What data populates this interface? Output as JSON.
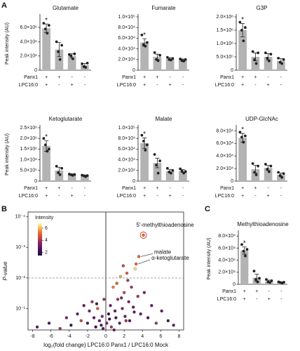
{
  "chart_data": [
    {
      "type": "bar",
      "panel": "A",
      "title": "Glutamate",
      "ylabel": "Peak intensity (AU)",
      "color": "#b3b3b3",
      "annotation": "*",
      "values": [
        5900000,
        2900000,
        2000000,
        700000
      ],
      "errors": [
        600000,
        1000000,
        300000,
        250000
      ],
      "points": [
        [
          6600000,
          5800000,
          5200000,
          6300000
        ],
        [
          4000000,
          2600000,
          1500000,
          3500000
        ],
        [
          2200000,
          2000000,
          1600000,
          2300000
        ],
        [
          900000,
          500000,
          400000,
          1000000
        ]
      ],
      "ylim": [
        0,
        7500000
      ],
      "yticks": [
        {
          "value": 0,
          "label": "0"
        },
        {
          "value": 2000000,
          "label": "2.0×10⁶"
        },
        {
          "value": 4000000,
          "label": "4.0×10⁶"
        },
        {
          "value": 6000000,
          "label": "6.0×10⁶"
        }
      ],
      "condition_labels": [
        "Panx1",
        "LPC16:0"
      ],
      "conditions": [
        [
          "+",
          "+",
          "-",
          "-"
        ],
        [
          "+",
          "-",
          "+",
          "-"
        ]
      ]
    },
    {
      "type": "bar",
      "title": "Fumarate",
      "color": "#b3b3b3",
      "annotation": "*",
      "values": [
        52000,
        25000,
        21000,
        19000
      ],
      "errors": [
        7000,
        5000,
        2500,
        2000
      ],
      "points": [
        [
          66000,
          48000,
          45000,
          52000
        ],
        [
          33000,
          20000,
          18000,
          28000
        ],
        [
          24000,
          20000,
          19000,
          22000
        ],
        [
          21000,
          18000,
          17000,
          20000
        ]
      ],
      "ylim": [
        0,
        100000
      ],
      "yticks": [
        {
          "value": 0,
          "label": "0"
        },
        {
          "value": 20000,
          "label": "2.0×10⁴"
        },
        {
          "value": 40000,
          "label": "4.0×10⁴"
        },
        {
          "value": 60000,
          "label": "6.0×10⁴"
        },
        {
          "value": 80000,
          "label": "8.0×10⁴"
        },
        {
          "value": 100000,
          "label": "1.0×10⁵"
        }
      ],
      "condition_labels": [
        "Panx1",
        "LPC16:0"
      ],
      "conditions": [
        [
          "+",
          "+",
          "-",
          "-"
        ],
        [
          "+",
          "-",
          "+",
          "-"
        ]
      ]
    },
    {
      "type": "bar",
      "title": "G3P",
      "color": "#b3b3b3",
      "annotation": "*",
      "values": [
        1500000,
        500000,
        500000,
        350000
      ],
      "errors": [
        250000,
        150000,
        120000,
        80000
      ],
      "points": [
        [
          1800000,
          1500000,
          1100000,
          1600000
        ],
        [
          700000,
          400000,
          250000,
          650000
        ],
        [
          650000,
          450000,
          350000,
          600000
        ],
        [
          450000,
          300000,
          250000,
          400000
        ]
      ],
      "ylim": [
        0,
        2000000
      ],
      "yticks": [
        {
          "value": 0,
          "label": "0"
        },
        {
          "value": 500000,
          "label": "5.0×10⁵"
        },
        {
          "value": 1000000,
          "label": "1.0×10⁶"
        },
        {
          "value": 1500000,
          "label": "1.5×10⁶"
        },
        {
          "value": 2000000,
          "label": "2.0×10⁶"
        }
      ],
      "condition_labels": [
        "Panx1",
        "LPC16:0"
      ],
      "conditions": [
        [
          "+",
          "+",
          "-",
          "-"
        ],
        [
          "+",
          "-",
          "+",
          "-"
        ]
      ]
    },
    {
      "type": "bar",
      "title": "Ketoglutarate",
      "ylabel": "Peak intensity (AU)",
      "color": "#b3b3b3",
      "annotation": "*",
      "values": [
        1650000,
        500000,
        300000,
        250000
      ],
      "errors": [
        250000,
        150000,
        40000,
        40000
      ],
      "points": [
        [
          2000000,
          1700000,
          1400000,
          1500000
        ],
        [
          700000,
          400000,
          300000,
          600000
        ],
        [
          330000,
          300000,
          270000,
          310000
        ],
        [
          280000,
          250000,
          210000,
          260000
        ]
      ],
      "ylim": [
        0,
        2500000
      ],
      "yticks": [
        {
          "value": 0,
          "label": "0"
        },
        {
          "value": 500000,
          "label": "5.0×10⁵"
        },
        {
          "value": 1000000,
          "label": "1.0×10⁶"
        },
        {
          "value": 1500000,
          "label": "1.5×10⁶"
        },
        {
          "value": 2000000,
          "label": "2.0×10⁶"
        },
        {
          "value": 2500000,
          "label": "2.5×10⁶"
        }
      ],
      "condition_labels": [
        "Panx1",
        "LPC16:0"
      ],
      "conditions": [
        [
          "+",
          "+",
          "-",
          "-"
        ],
        [
          "+",
          "-",
          "+",
          "-"
        ]
      ]
    },
    {
      "type": "bar",
      "title": "Malate",
      "color": "#b3b3b3",
      "annotation": "*",
      "values": [
        71000,
        34000,
        19000,
        19000
      ],
      "errors": [
        10000,
        9000,
        3000,
        2500
      ],
      "points": [
        [
          86000,
          75000,
          58000,
          68000
        ],
        [
          50000,
          30000,
          15000,
          38000
        ],
        [
          24000,
          17000,
          15000,
          20000
        ],
        [
          23000,
          19000,
          15000,
          18000
        ]
      ],
      "ylim": [
        0,
        100000
      ],
      "yticks": [
        {
          "value": 0,
          "label": "0"
        },
        {
          "value": 20000,
          "label": "2.0×10⁴"
        },
        {
          "value": 40000,
          "label": "4.0×10⁴"
        },
        {
          "value": 60000,
          "label": "6.0×10⁴"
        },
        {
          "value": 80000,
          "label": "8.0×10⁴"
        },
        {
          "value": 100000,
          "label": "1.0×10⁵"
        }
      ],
      "condition_labels": [
        "Panx1",
        "LPC16:0"
      ],
      "conditions": [
        [
          "+",
          "+",
          "-",
          "-"
        ],
        [
          "+",
          "-",
          "+",
          "-"
        ]
      ]
    },
    {
      "type": "bar",
      "title": "UDP-GlcNAc",
      "color": "#b3b3b3",
      "annotation": "*",
      "values": [
        69000,
        19000,
        21000,
        10000
      ],
      "errors": [
        7000,
        6000,
        4000,
        3000
      ],
      "points": [
        [
          78000,
          70000,
          62000,
          72000
        ],
        [
          28000,
          14000,
          10000,
          24000
        ],
        [
          27000,
          19000,
          15000,
          24000
        ],
        [
          14000,
          9000,
          6000,
          12000
        ]
      ],
      "ylim": [
        0,
        85000
      ],
      "yticks": [
        {
          "value": 0,
          "label": "0"
        },
        {
          "value": 20000,
          "label": "2.0×10⁴"
        },
        {
          "value": 40000,
          "label": "4.0×10⁴"
        },
        {
          "value": 60000,
          "label": "6.0×10⁴"
        },
        {
          "value": 80000,
          "label": "8.0×10⁴"
        }
      ],
      "condition_labels": [
        "Panx1",
        "LPC16:0"
      ],
      "conditions": [
        [
          "+",
          "+",
          "-",
          "-"
        ],
        [
          "+",
          "-",
          "+",
          "-"
        ]
      ]
    },
    {
      "type": "bar",
      "panel": "C",
      "title": "Methylthioadenosine",
      "ylabel": "Peak intensity (AU)",
      "color": "#b3b3b3",
      "annotation": "*",
      "values": [
        56000,
        11000,
        5000,
        3000
      ],
      "errors": [
        6000,
        6000,
        2000,
        1000
      ],
      "points": [
        [
          66000,
          55000,
          47000,
          58000
        ],
        [
          22000,
          8000,
          4000,
          10000
        ],
        [
          8000,
          4000,
          3000,
          6000
        ],
        [
          4000,
          3000,
          2000,
          3500
        ]
      ],
      "ylim": [
        0,
        85000
      ],
      "yticks": [
        {
          "value": 0,
          "label": "0"
        },
        {
          "value": 20000,
          "label": "2.0×10⁴"
        },
        {
          "value": 40000,
          "label": "4.0×10⁴"
        },
        {
          "value": 60000,
          "label": "6.0×10⁴"
        },
        {
          "value": 80000,
          "label": "8.0×10⁴"
        }
      ],
      "condition_labels": [
        "Panx1",
        "LPC16:0"
      ],
      "conditions": [
        [
          "+",
          "+",
          "-",
          "-"
        ],
        [
          "+",
          "-",
          "+",
          "-"
        ]
      ]
    },
    {
      "type": "scatter",
      "panel": "B",
      "xlabel": "log₂(fold change) LPC16:0 Panx1 / LPC16:0 Mock",
      "ylabel": "P-value",
      "log_y": true,
      "threshold": 0.01,
      "colorbar_title": "Intensity",
      "clim": [
        1.5,
        6.8
      ],
      "cticks": [
        2,
        4,
        6
      ],
      "xlim": [
        -8.5,
        8.5
      ],
      "xticks": [
        -8,
        -6,
        -4,
        -2,
        0,
        2,
        4,
        6,
        8
      ],
      "ylim": [
        0.5,
        7e-05
      ],
      "yticks": [
        {
          "value": 0.1,
          "label": "10⁻¹"
        },
        {
          "value": 0.01,
          "label": "10⁻²"
        },
        {
          "value": 0.001,
          "label": "10⁻³"
        },
        {
          "value": 0.0001,
          "label": "10⁻⁴"
        }
      ],
      "x": [
        -7.5,
        -6.2,
        -5.0,
        -4.3,
        -3.8,
        -3.1,
        -2.7,
        -2.4,
        -2.0,
        -1.8,
        -1.5,
        -1.3,
        -1.1,
        -0.9,
        -0.7,
        -0.5,
        -0.3,
        -0.2,
        0.1,
        0.3,
        0.5,
        0.6,
        0.8,
        1.0,
        1.1,
        1.3,
        1.5,
        1.6,
        1.8,
        2.0,
        2.1,
        2.3,
        2.5,
        2.6,
        2.8,
        3.0,
        3.2,
        3.5,
        3.8,
        4.2,
        4.6,
        5.0,
        5.5,
        6.1,
        6.8,
        7.4,
        -0.4,
        0.4,
        1.2,
        1.9,
        2.4,
        0.9,
        -1.0,
        1.7,
        2.2,
        3.1
      ],
      "y": [
        0.4,
        0.3,
        0.45,
        0.2,
        0.35,
        0.15,
        0.25,
        0.08,
        0.3,
        0.12,
        0.06,
        0.2,
        0.4,
        0.1,
        0.25,
        0.35,
        0.45,
        0.05,
        0.3,
        0.15,
        0.08,
        0.4,
        0.02,
        0.12,
        0.2,
        0.05,
        0.3,
        0.009,
        0.1,
        0.03,
        0.18,
        0.007,
        0.06,
        0.25,
        0.02,
        0.09,
        0.005,
        0.04,
        0.15,
        0.03,
        0.2,
        0.08,
        0.3,
        0.12,
        0.25,
        0.35,
        0.18,
        0.22,
        0.015,
        0.004,
        0.012,
        0.5,
        0.07,
        0.045,
        0.25,
        0.13
      ],
      "intensity": [
        3,
        2.5,
        4,
        3.5,
        2,
        3,
        4.5,
        3,
        2.5,
        3.5,
        4,
        3,
        2,
        5,
        3,
        2.5,
        3,
        4,
        3.5,
        2,
        3,
        4,
        5.5,
        3,
        2.5,
        4,
        3,
        6,
        3.5,
        4.5,
        3,
        5,
        3.5,
        2.5,
        4,
        3,
        6.5,
        4,
        3,
        3.5,
        2.5,
        3,
        4,
        3,
        2.5,
        3,
        3.5,
        2,
        5,
        4.5,
        4,
        3,
        2.5,
        3.5,
        4,
        3
      ],
      "annotations": [
        {
          "text": "5'-methylthioadenosine",
          "x": 4.1,
          "y": 0.0004
        },
        {
          "text": "malate",
          "x": 3.6,
          "y": 0.002
        },
        {
          "text": "α-ketoglutarate",
          "x": 3.3,
          "y": 0.0035
        }
      ]
    }
  ]
}
